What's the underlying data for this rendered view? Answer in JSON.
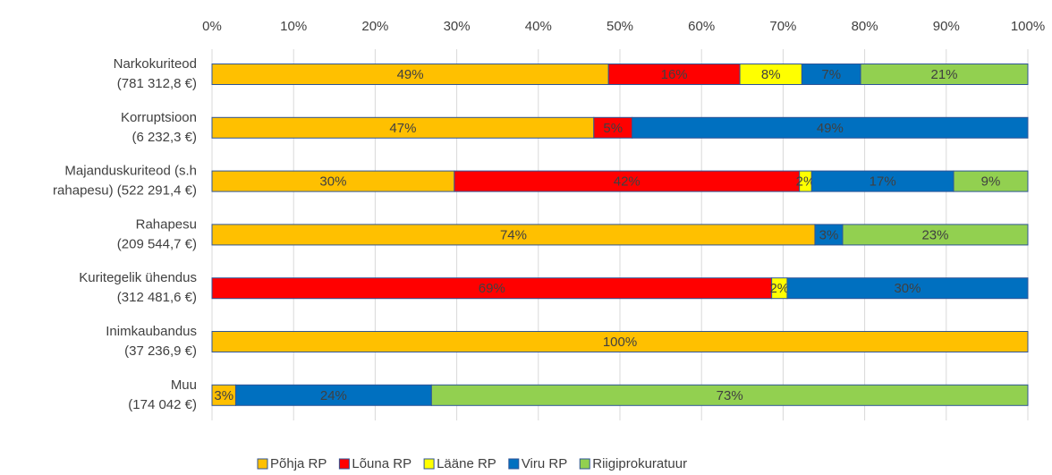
{
  "chart_data": {
    "type": "stacked_bar_horizontal",
    "categories": [
      [
        "Narkokuriteod",
        "(781 312,8 €)"
      ],
      [
        "Korruptsioon",
        "(6 232,3 €)"
      ],
      [
        "Majanduskuriteod (s.h",
        "rahapesu) (522 291,4 €)"
      ],
      [
        "Rahapesu",
        "(209 544,7 €)"
      ],
      [
        "Kuritegelik ühendus",
        "(312 481,6 €)"
      ],
      [
        "Inimkaubandus",
        "(37 236,9 €)"
      ],
      [
        "Muu",
        "(174 042 €)"
      ]
    ],
    "series": [
      {
        "name": "Põhja RP",
        "color": "#FFC000",
        "values": [
          48.6,
          46.8,
          29.7,
          73.9,
          null,
          100,
          2.9
        ],
        "value_labels": [
          "49%",
          "47%",
          "30%",
          "74%",
          null,
          "100%",
          "3%"
        ]
      },
      {
        "name": "Lõuna RP",
        "color": "#FF0000",
        "values": [
          16.1,
          4.7,
          42.3,
          null,
          68.6,
          null,
          null
        ],
        "value_labels": [
          "16%",
          "5%",
          "42%",
          null,
          "69%",
          null,
          null
        ]
      },
      {
        "name": "Lääne RP",
        "color": "#FFFF00",
        "values": [
          7.6,
          null,
          1.5,
          null,
          1.9,
          null,
          null
        ],
        "value_labels": [
          "8%",
          null,
          "2%",
          null,
          "2%",
          null,
          null
        ]
      },
      {
        "name": "Viru RP",
        "color": "#0070C0",
        "values": [
          7.2,
          48.5,
          17.4,
          3.4,
          29.5,
          null,
          24.0
        ],
        "value_labels": [
          "7%",
          "49%",
          "17%",
          "3%",
          "30%",
          null,
          "24%"
        ]
      },
      {
        "name": "Riigiprokuratuur",
        "color": "#92D050",
        "values": [
          20.5,
          null,
          9.1,
          22.7,
          null,
          null,
          73.1
        ],
        "value_labels": [
          "21%",
          null,
          "9%",
          "23%",
          null,
          null,
          "73%"
        ]
      }
    ],
    "xlim": [
      0,
      100
    ],
    "xticks": [
      {
        "value": 0,
        "label": "0%"
      },
      {
        "value": 10,
        "label": "10%"
      },
      {
        "value": 20,
        "label": "20%"
      },
      {
        "value": 30,
        "label": "30%"
      },
      {
        "value": 40,
        "label": "40%"
      },
      {
        "value": 50,
        "label": "50%"
      },
      {
        "value": 60,
        "label": "60%"
      },
      {
        "value": 70,
        "label": "70%"
      },
      {
        "value": 80,
        "label": "80%"
      },
      {
        "value": 90,
        "label": "90%"
      },
      {
        "value": 100,
        "label": "100%"
      }
    ],
    "grid": true,
    "legend": "bottom"
  }
}
